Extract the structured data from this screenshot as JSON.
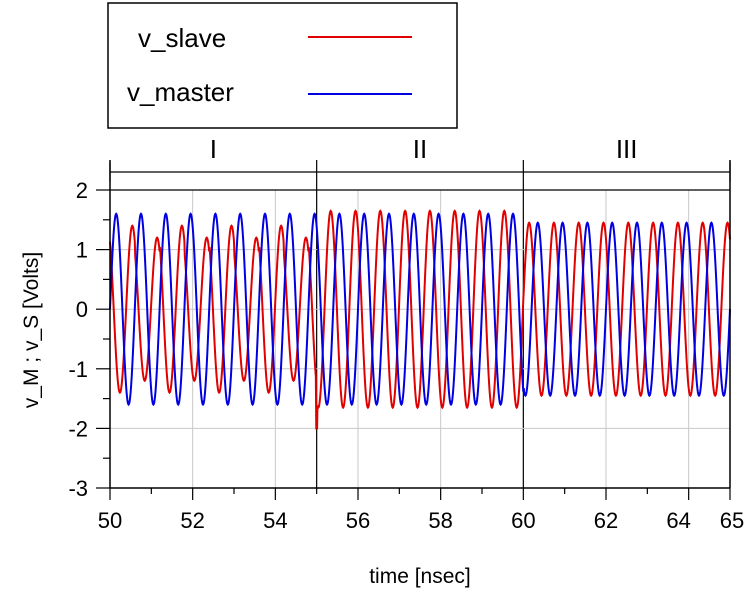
{
  "chart_data": {
    "type": "line",
    "title": "",
    "xlabel": "time [nsec]",
    "ylabel": "v_M ; v_S [Volts]",
    "xlim": [
      50,
      65
    ],
    "ylim": [
      -3,
      2.3
    ],
    "x_ticks": [
      "50",
      "52",
      "54",
      "56",
      "58",
      "60",
      "62",
      "64",
      "65"
    ],
    "y_ticks": [
      "2",
      "1",
      "0",
      "-1",
      "-2",
      "-3"
    ],
    "grid": true,
    "legend_position": "top-left",
    "regions": [
      {
        "label": "I",
        "x_start": 50,
        "x_end": 55
      },
      {
        "label": "II",
        "x_start": 55,
        "x_end": 60
      },
      {
        "label": "III",
        "x_start": 60,
        "x_end": 65
      }
    ],
    "series": [
      {
        "name": "v_slave",
        "color": "#e00000",
        "period_ns": 0.6,
        "segments": [
          {
            "x_start": 50,
            "x_end": 55,
            "amplitude": 1.4,
            "min_amplitude": 1.2
          },
          {
            "x_start": 55,
            "x_end": 60,
            "amplitude": 1.65
          },
          {
            "x_start": 60,
            "x_end": 65,
            "amplitude": 1.45
          }
        ],
        "spike": {
          "x": 55,
          "y": -2.0
        }
      },
      {
        "name": "v_master",
        "color": "#0000e0",
        "period_ns": 0.6,
        "segments": [
          {
            "x_start": 50,
            "x_end": 55,
            "amplitude": 1.6
          },
          {
            "x_start": 55,
            "x_end": 60,
            "amplitude": 1.6
          },
          {
            "x_start": 60,
            "x_end": 65,
            "amplitude": 1.45
          }
        ]
      }
    ]
  }
}
